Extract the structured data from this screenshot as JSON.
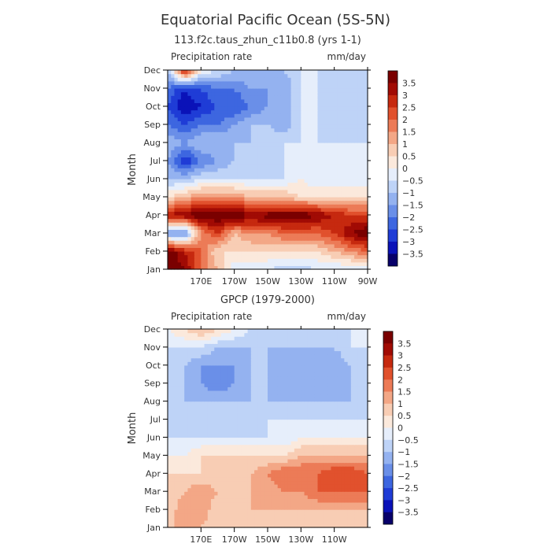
{
  "page": {
    "title": "Equatorial Pacific Ocean (5S-5N)"
  },
  "colors": {
    "levels": [
      "#08006a",
      "#0a12b8",
      "#1f3cd6",
      "#3d66e0",
      "#6a8fe8",
      "#94b2f0",
      "#bed3f7",
      "#e6eefb",
      "#fbe9dc",
      "#f8cdb4",
      "#f3a786",
      "#ec7b57",
      "#e1512d",
      "#c6290f",
      "#a10b04",
      "#7a0000"
    ]
  },
  "chart_data": [
    {
      "type": "heatmap",
      "title": "113.f2c.taus_zhun_c11b0.8 (yrs 1-1)",
      "variable_label": "Precipitation rate",
      "units_label": "mm/day",
      "ylabel": "Month",
      "x_ticks": [
        "170E",
        "170W",
        "150W",
        "130W",
        "110W",
        "90W"
      ],
      "x_tick_positions": [
        170,
        190,
        210,
        230,
        250,
        270
      ],
      "xlim": [
        150,
        270
      ],
      "y_ticks": [
        "Jan",
        "Feb",
        "Mar",
        "Apr",
        "May",
        "Jun",
        "Jul",
        "Aug",
        "Sep",
        "Oct",
        "Nov",
        "Dec"
      ],
      "colorbar_labels": [
        "3.5",
        "3",
        "2.5",
        "2",
        "1.5",
        "1",
        "0.5",
        "0",
        "-0.5",
        "-1",
        "-1.5",
        "-2",
        "-2.5",
        "-3",
        "-3.5"
      ],
      "lon": [
        150,
        160,
        170,
        180,
        190,
        200,
        210,
        220,
        230,
        240,
        250,
        260,
        270
      ],
      "values": [
        [
          4.0,
          3.5,
          2.0,
          1.0,
          -0.5,
          -0.5,
          -0.5,
          -0.8,
          -0.8,
          -0.5,
          -0.5,
          -0.5,
          -0.5
        ],
        [
          4.0,
          3.0,
          2.0,
          0.5,
          0.5,
          0.5,
          0.5,
          0.5,
          0.5,
          0.5,
          1.0,
          1.5,
          2.0
        ],
        [
          -1.5,
          -2.0,
          1.5,
          2.5,
          1.0,
          1.5,
          1.5,
          2.0,
          2.0,
          2.0,
          2.5,
          3.5,
          4.0
        ],
        [
          3.0,
          3.5,
          4.0,
          4.0,
          4.0,
          3.5,
          3.8,
          3.8,
          4.0,
          3.5,
          3.0,
          2.5,
          2.5
        ],
        [
          0.5,
          1.0,
          1.5,
          1.5,
          1.5,
          1.0,
          1.0,
          1.0,
          0.5,
          0.5,
          0.5,
          0.5,
          0.5
        ],
        [
          -1.0,
          -1.0,
          -0.5,
          -0.5,
          -0.5,
          -0.5,
          -0.5,
          -0.5,
          0.0,
          -0.5,
          -0.5,
          -0.5,
          -0.5
        ],
        [
          -1.5,
          -3.0,
          -2.0,
          -1.5,
          -1.0,
          -1.0,
          -1.0,
          -0.5,
          -0.5,
          -0.5,
          -0.5,
          -0.5,
          -0.5
        ],
        [
          -1.0,
          -1.5,
          -1.0,
          -1.0,
          -1.0,
          -1.0,
          -0.5,
          -0.5,
          -0.5,
          -0.5,
          -0.5,
          -0.5,
          -0.5
        ],
        [
          -2.0,
          -2.5,
          -2.0,
          -2.0,
          -1.5,
          -1.0,
          -1.0,
          -1.5,
          -0.5,
          -0.5,
          -1.0,
          -1.0,
          -1.0
        ],
        [
          -2.5,
          -3.5,
          -3.0,
          -2.5,
          -2.5,
          -2.0,
          -1.5,
          -1.5,
          -0.5,
          -0.5,
          -1.0,
          -1.0,
          -1.0
        ],
        [
          -2.0,
          -3.0,
          -2.5,
          -2.0,
          -2.0,
          -1.5,
          -1.5,
          -1.5,
          -0.5,
          -0.5,
          -1.0,
          -1.0,
          -1.0
        ],
        [
          -1.0,
          3.0,
          0.0,
          -0.5,
          -1.0,
          -1.0,
          -1.0,
          -1.0,
          -0.5,
          -0.5,
          -1.0,
          -1.0,
          -1.0
        ]
      ]
    },
    {
      "type": "heatmap",
      "title": "GPCP (1979-2000)",
      "variable_label": "Precipitation rate",
      "units_label": "mm/day",
      "ylabel": "Month",
      "x_ticks": [
        "170E",
        "170W",
        "150W",
        "130W",
        "110W"
      ],
      "x_tick_positions": [
        170,
        190,
        210,
        230,
        250
      ],
      "xlim": [
        150,
        270
      ],
      "y_ticks": [
        "Jan",
        "Feb",
        "Mar",
        "Apr",
        "May",
        "Jun",
        "Jul",
        "Aug",
        "Sep",
        "Oct",
        "Nov",
        "Dec"
      ],
      "colorbar_labels": [
        "3.5",
        "3",
        "2.5",
        "2",
        "1.5",
        "1",
        "0.5",
        "0",
        "-0.5",
        "-1",
        "-1.5",
        "-2",
        "-2.5",
        "-3",
        "-3.5"
      ],
      "lon": [
        150,
        160,
        170,
        180,
        190,
        200,
        210,
        220,
        230,
        240,
        250,
        260,
        270
      ],
      "values": [
        [
          0.5,
          1.5,
          1.0,
          0.5,
          0.5,
          0.5,
          0.5,
          0.5,
          0.5,
          0.5,
          0.5,
          0.5,
          0.5
        ],
        [
          0.5,
          1.5,
          1.5,
          0.5,
          0.5,
          1.0,
          1.0,
          1.0,
          1.0,
          1.0,
          1.0,
          1.0,
          1.0
        ],
        [
          0.5,
          1.0,
          1.5,
          1.0,
          1.0,
          1.0,
          1.0,
          1.5,
          1.5,
          2.0,
          2.0,
          2.0,
          2.0
        ],
        [
          0.5,
          0.5,
          0.5,
          0.5,
          0.5,
          1.0,
          1.5,
          2.0,
          2.0,
          2.0,
          2.5,
          2.5,
          2.0
        ],
        [
          0.0,
          0.0,
          0.5,
          0.5,
          0.5,
          0.5,
          0.5,
          0.5,
          1.0,
          1.0,
          1.0,
          1.0,
          1.0
        ],
        [
          -0.5,
          -0.5,
          -0.5,
          -0.5,
          -0.5,
          -0.5,
          -0.5,
          -0.5,
          0.0,
          0.0,
          0.0,
          0.0,
          0.0
        ],
        [
          -1.0,
          -0.5,
          -1.0,
          -1.0,
          -1.0,
          -1.0,
          -0.5,
          -0.5,
          -0.5,
          -0.5,
          -0.5,
          -0.5,
          -0.5
        ],
        [
          -1.0,
          -1.0,
          -1.0,
          -1.0,
          -1.0,
          -1.0,
          -1.0,
          -1.0,
          -1.0,
          -1.0,
          -1.0,
          -1.0,
          -1.0
        ],
        [
          -1.0,
          -1.0,
          -1.5,
          -2.0,
          -1.5,
          -1.0,
          -1.0,
          -1.5,
          -1.5,
          -1.5,
          -1.5,
          -1.0,
          -1.0
        ],
        [
          -1.0,
          -1.0,
          -1.5,
          -1.5,
          -1.5,
          -1.0,
          -1.0,
          -1.5,
          -1.5,
          -1.5,
          -1.5,
          -1.0,
          -1.0
        ],
        [
          -0.5,
          -0.5,
          -0.5,
          -1.0,
          -1.0,
          -1.0,
          -1.0,
          -1.0,
          -1.0,
          -1.0,
          -1.0,
          -0.5,
          -0.5
        ],
        [
          0.0,
          0.5,
          1.0,
          0.5,
          0.0,
          -0.5,
          -0.5,
          -0.5,
          -0.5,
          -0.5,
          -0.5,
          -0.5,
          -0.5
        ]
      ]
    }
  ]
}
